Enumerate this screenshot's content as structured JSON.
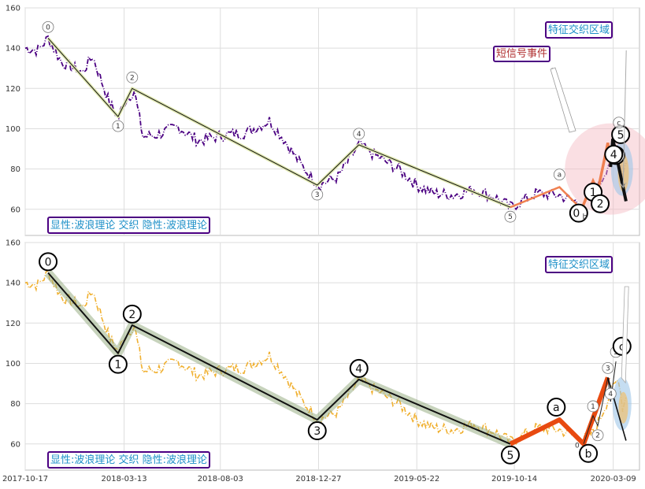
{
  "chart_data": [
    {
      "type": "line",
      "panel": "top",
      "ylim": [
        47,
        160
      ],
      "yticks": [
        60,
        80,
        100,
        120,
        140,
        160
      ],
      "x_range": [
        "2017-10-17",
        "2020-04-17"
      ],
      "xticks": [
        "2017-10-17",
        "2018-03-13",
        "2018-08-03",
        "2018-12-27",
        "2019-05-22",
        "2019-10-14",
        "2020-03-09"
      ],
      "grid": true,
      "price_color": "#4b0082",
      "price_anchors": [
        [
          "2017-10-17",
          140
        ],
        [
          "2017-11-05",
          139
        ],
        [
          "2017-11-20",
          145
        ],
        [
          "2017-12-10",
          133
        ],
        [
          "2018-01-10",
          128
        ],
        [
          "2018-01-25",
          136
        ],
        [
          "2018-02-05",
          126
        ],
        [
          "2018-02-20",
          112
        ],
        [
          "2018-03-05",
          106
        ],
        [
          "2018-03-13",
          113
        ],
        [
          "2018-03-28",
          119
        ],
        [
          "2018-04-10",
          96
        ],
        [
          "2018-05-01",
          97
        ],
        [
          "2018-06-01",
          101
        ],
        [
          "2018-07-01",
          94
        ],
        [
          "2018-08-10",
          97
        ],
        [
          "2018-09-10",
          98
        ],
        [
          "2018-10-15",
          104
        ],
        [
          "2018-11-05",
          95
        ],
        [
          "2018-12-01",
          82
        ],
        [
          "2018-12-27",
          72
        ],
        [
          "2019-01-25",
          76
        ],
        [
          "2019-02-25",
          92
        ],
        [
          "2019-03-25",
          86
        ],
        [
          "2019-04-25",
          80
        ],
        [
          "2019-05-22",
          72
        ],
        [
          "2019-06-15",
          68
        ],
        [
          "2019-07-15",
          67
        ],
        [
          "2019-08-15",
          70
        ],
        [
          "2019-09-15",
          66
        ],
        [
          "2019-10-08",
          61
        ],
        [
          "2019-10-25",
          64
        ],
        [
          "2019-11-15",
          68
        ],
        [
          "2019-12-20",
          67
        ],
        [
          "2020-01-10",
          64
        ],
        [
          "2020-01-25",
          63
        ],
        [
          "2020-02-10",
          66
        ],
        [
          "2020-02-25",
          78
        ],
        [
          "2020-03-09",
          88
        ],
        [
          "2020-03-17",
          93
        ],
        [
          "2020-03-23",
          78
        ],
        [
          "2020-03-28",
          83
        ]
      ],
      "wave": [
        {
          "label": "0",
          "date": "2017-11-20",
          "value": 145
        },
        {
          "label": "1",
          "date": "2018-03-04",
          "value": 106
        },
        {
          "label": "2",
          "date": "2018-03-25",
          "value": 120
        },
        {
          "label": "3",
          "date": "2018-12-25",
          "value": 72
        },
        {
          "label": "4",
          "date": "2019-02-25",
          "value": 92
        },
        {
          "label": "5",
          "date": "2019-10-08",
          "value": 61
        }
      ],
      "sub_waves": [
        {
          "label": "a",
          "date": "2019-12-20",
          "value": 71
        },
        {
          "label": "0",
          "date": "2020-01-20",
          "value": 62
        },
        {
          "label": "b",
          "date": "2020-01-22",
          "value": 60
        },
        {
          "label": "1",
          "date": "2020-02-08",
          "value": 74
        },
        {
          "label": "2",
          "date": "2020-02-15",
          "value": 69
        },
        {
          "label": "3",
          "date": "2020-03-01",
          "value": 93
        },
        {
          "label": "4",
          "date": "2020-03-05",
          "value": 81
        },
        {
          "label": "5",
          "date": "2020-03-13",
          "value": 101
        },
        {
          "label": "c",
          "date": "2020-03-22",
          "value": 103
        }
      ],
      "text_boxes": [
        {
          "id": "feature",
          "text": "特征交织区域",
          "color": "#1e90c8",
          "border": "#4b0082"
        },
        {
          "id": "sms",
          "text": "短信号事件",
          "color": "#b03030",
          "border": "#4b0082"
        },
        {
          "id": "legend",
          "text": "显性:波浪理论 交织 隐性:波浪理论",
          "color": "#1e90c8",
          "border": "#4b0082"
        }
      ]
    },
    {
      "type": "line",
      "panel": "bottom",
      "ylim": [
        47,
        160
      ],
      "yticks": [
        60,
        80,
        100,
        120,
        140,
        160
      ],
      "x_range": [
        "2017-10-17",
        "2020-04-17"
      ],
      "xticks": [
        "2017-10-17",
        "2018-03-13",
        "2018-08-03",
        "2018-12-27",
        "2019-05-22",
        "2019-10-14",
        "2020-03-09"
      ],
      "grid": true,
      "price_color": "#f0b030",
      "wave": [
        {
          "label": "0",
          "date": "2017-11-20",
          "value": 145
        },
        {
          "label": "1",
          "date": "2018-03-04",
          "value": 105
        },
        {
          "label": "2",
          "date": "2018-03-25",
          "value": 119
        },
        {
          "label": "3",
          "date": "2018-12-25",
          "value": 72
        },
        {
          "label": "4",
          "date": "2019-02-25",
          "value": 92
        },
        {
          "label": "5",
          "date": "2019-10-08",
          "value": 60
        }
      ],
      "sub_waves": [
        {
          "label": "a",
          "date": "2019-12-20",
          "value": 72
        },
        {
          "label": "0",
          "date": "2020-01-20",
          "value": 62
        },
        {
          "label": "b",
          "date": "2020-01-25",
          "value": 60
        },
        {
          "label": "1",
          "date": "2020-02-08",
          "value": 74
        },
        {
          "label": "2",
          "date": "2020-02-15",
          "value": 69
        },
        {
          "label": "3",
          "date": "2020-03-01",
          "value": 93
        },
        {
          "label": "4",
          "date": "2020-03-05",
          "value": 81
        },
        {
          "label": "5",
          "date": "2020-03-13",
          "value": 101
        },
        {
          "label": "c",
          "date": "2020-03-22",
          "value": 103
        }
      ],
      "text_boxes": [
        {
          "id": "feature",
          "text": "特征交织区域",
          "color": "#1e90c8",
          "border": "#4b0082"
        },
        {
          "id": "legend",
          "text": "显性:波浪理论 交织 隐性:波浪理论",
          "color": "#1e90c8",
          "border": "#4b0082"
        }
      ]
    }
  ]
}
